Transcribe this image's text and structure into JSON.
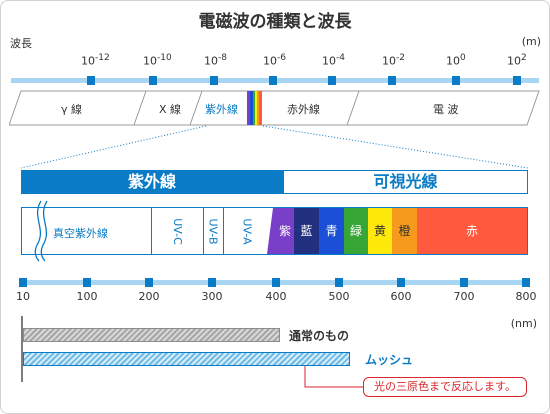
{
  "title": "電磁波の種類と波長",
  "wavelength_axis": {
    "label": "波長",
    "unit": "(m)",
    "ticks": [
      {
        "base": "10",
        "exp": "-12"
      },
      {
        "base": "10",
        "exp": "-10"
      },
      {
        "base": "10",
        "exp": "-8"
      },
      {
        "base": "10",
        "exp": "-6"
      },
      {
        "base": "10",
        "exp": "-4"
      },
      {
        "base": "10",
        "exp": "-2"
      },
      {
        "base": "10",
        "exp": "0"
      },
      {
        "base": "10",
        "exp": "2"
      }
    ]
  },
  "spectrum_bands": [
    "γ 線",
    "X 線",
    "紫外線",
    "赤外線",
    "電 波"
  ],
  "zoom": {
    "uv_header": "紫外線",
    "visible_header": "可視光線",
    "uv_segments": [
      "真空紫外線",
      "UV-C",
      "UV-B",
      "UV-A"
    ],
    "visible_colors": [
      {
        "label": "紫",
        "color": "#7a3fc8"
      },
      {
        "label": "藍",
        "color": "#21307f"
      },
      {
        "label": "青",
        "color": "#1a4fd6"
      },
      {
        "label": "緑",
        "color": "#37a637"
      },
      {
        "label": "黄",
        "color": "#ffe90a"
      },
      {
        "label": "橙",
        "color": "#f59a1c"
      },
      {
        "label": "赤",
        "color": "#ff5a3d"
      }
    ]
  },
  "nm_axis": {
    "ticks": [
      "10",
      "100",
      "200",
      "300",
      "400",
      "500",
      "600",
      "700",
      "800"
    ],
    "unit": "(nm)"
  },
  "comparison": {
    "normal_label": "通常のもの",
    "mesh_label": "ムッシュ",
    "callout": "光の三原色まで反応します。"
  },
  "colors": {
    "primary_blue": "#0a7bc6",
    "axis_light": "#a8d6f2",
    "callout_red": "#d9262c",
    "hatch_gray": "#a6a6a6"
  }
}
